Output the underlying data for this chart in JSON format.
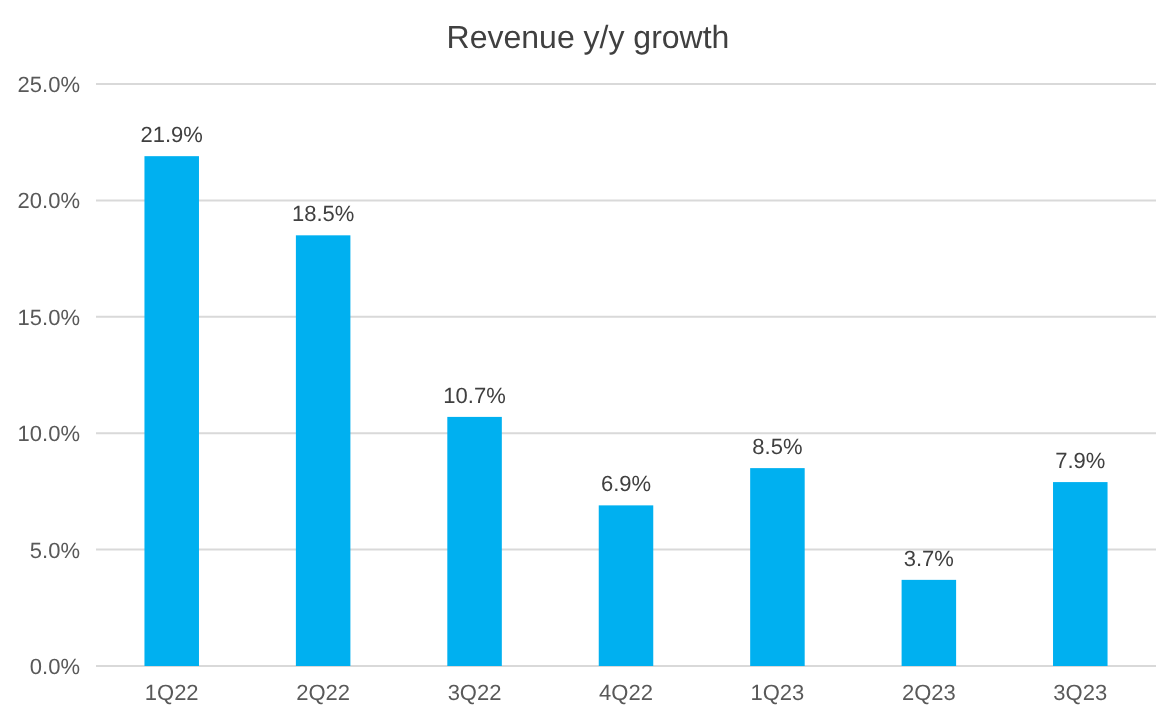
{
  "chart_data": {
    "type": "bar",
    "title": "Revenue y/y growth",
    "categories": [
      "1Q22",
      "2Q22",
      "3Q22",
      "4Q22",
      "1Q23",
      "2Q23",
      "3Q23"
    ],
    "values": [
      21.9,
      18.5,
      10.7,
      6.9,
      8.5,
      3.7,
      7.9
    ],
    "value_labels": [
      "21.9%",
      "18.5%",
      "10.7%",
      "6.9%",
      "8.5%",
      "3.7%",
      "7.9%"
    ],
    "color": "#00b0f0",
    "ylim": [
      0,
      25
    ],
    "yticks": [
      {
        "value": 0,
        "label": "0.0%"
      },
      {
        "value": 5,
        "label": "5.0%"
      },
      {
        "value": 10,
        "label": "10.0%"
      },
      {
        "value": 15,
        "label": "15.0%"
      },
      {
        "value": 20,
        "label": "20.0%"
      },
      {
        "value": 25,
        "label": "25.0%"
      }
    ],
    "grid": true
  }
}
